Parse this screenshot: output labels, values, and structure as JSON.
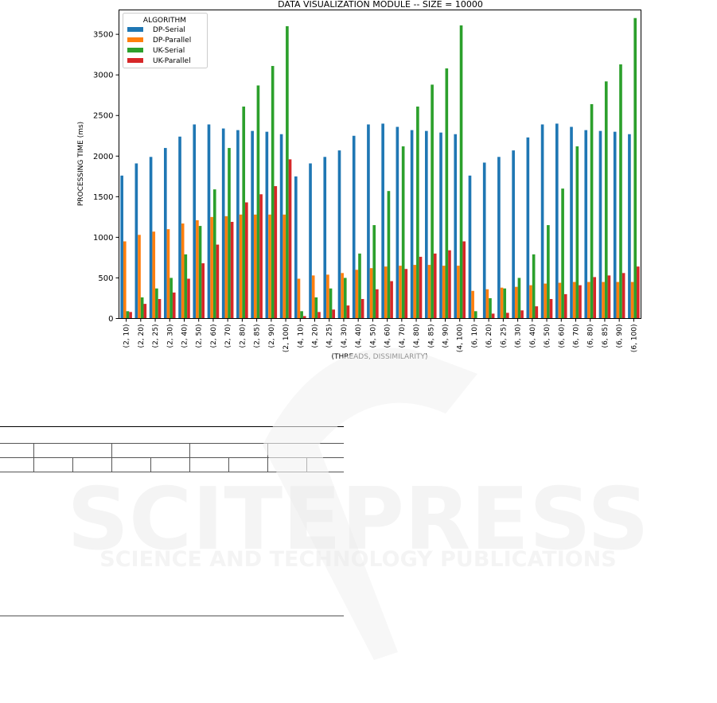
{
  "chart_data": {
    "type": "bar",
    "title": "DATA VISUALIZATION MODULE   --   SIZE = 10000",
    "xlabel": "(THREADS, DISSIMILARITY)",
    "ylabel": "PROCESSING TIME (ms)",
    "ylim": [
      0,
      3800
    ],
    "yticks": [
      0,
      500,
      1000,
      1500,
      2000,
      2500,
      3000,
      3500
    ],
    "grid": false,
    "legend": {
      "title": "ALGORITHM",
      "placement": "top-left"
    },
    "categories": [
      "(2, 10)",
      "(2, 20)",
      "(2, 25)",
      "(2, 30)",
      "(2, 40)",
      "(2, 50)",
      "(2, 60)",
      "(2, 70)",
      "(2, 80)",
      "(2, 85)",
      "(2, 90)",
      "(2, 100)",
      "(4, 10)",
      "(4, 20)",
      "(4, 25)",
      "(4, 30)",
      "(4, 40)",
      "(4, 50)",
      "(4, 60)",
      "(4, 70)",
      "(4, 80)",
      "(4, 85)",
      "(4, 90)",
      "(4, 100)",
      "(6, 10)",
      "(6, 20)",
      "(6, 25)",
      "(6, 30)",
      "(6, 40)",
      "(6, 50)",
      "(6, 60)",
      "(6, 70)",
      "(6, 80)",
      "(6, 85)",
      "(6, 90)",
      "(6, 100)"
    ],
    "series": [
      {
        "name": "DP-Serial",
        "color": "#1f77b4",
        "values": [
          1760,
          1910,
          1990,
          2100,
          2240,
          2390,
          2390,
          2340,
          2320,
          2310,
          2300,
          2270,
          1750,
          1910,
          1990,
          2070,
          2250,
          2390,
          2400,
          2360,
          2320,
          2310,
          2290,
          2270,
          1760,
          1920,
          1990,
          2070,
          2230,
          2390,
          2400,
          2360,
          2320,
          2310,
          2300,
          2270
        ]
      },
      {
        "name": "DP-Parallel",
        "color": "#ff7f0e",
        "values": [
          950,
          1030,
          1070,
          1100,
          1170,
          1210,
          1250,
          1260,
          1280,
          1280,
          1280,
          1280,
          490,
          530,
          540,
          560,
          600,
          620,
          640,
          650,
          660,
          660,
          650,
          650,
          340,
          360,
          380,
          390,
          410,
          430,
          440,
          450,
          450,
          450,
          450,
          450
        ]
      },
      {
        "name": "UK-Serial",
        "color": "#2ca02c",
        "values": [
          90,
          260,
          370,
          500,
          790,
          1140,
          1590,
          2100,
          2610,
          2870,
          3110,
          3600,
          90,
          260,
          370,
          500,
          800,
          1150,
          1570,
          2120,
          2610,
          2880,
          3080,
          3610,
          90,
          250,
          370,
          500,
          790,
          1150,
          1600,
          2120,
          2640,
          2920,
          3130,
          3700
        ]
      },
      {
        "name": "UK-Parallel",
        "color": "#d62728",
        "values": [
          80,
          180,
          240,
          320,
          490,
          680,
          910,
          1190,
          1430,
          1530,
          1630,
          1960,
          30,
          80,
          110,
          160,
          240,
          360,
          460,
          610,
          760,
          800,
          840,
          950,
          0,
          60,
          70,
          100,
          150,
          240,
          300,
          410,
          510,
          530,
          560,
          640
        ]
      }
    ]
  },
  "watermark": {
    "main": "SCITEPRESS",
    "sub": "SCIENCE AND TECHNOLOGY PUBLICATIONS"
  }
}
